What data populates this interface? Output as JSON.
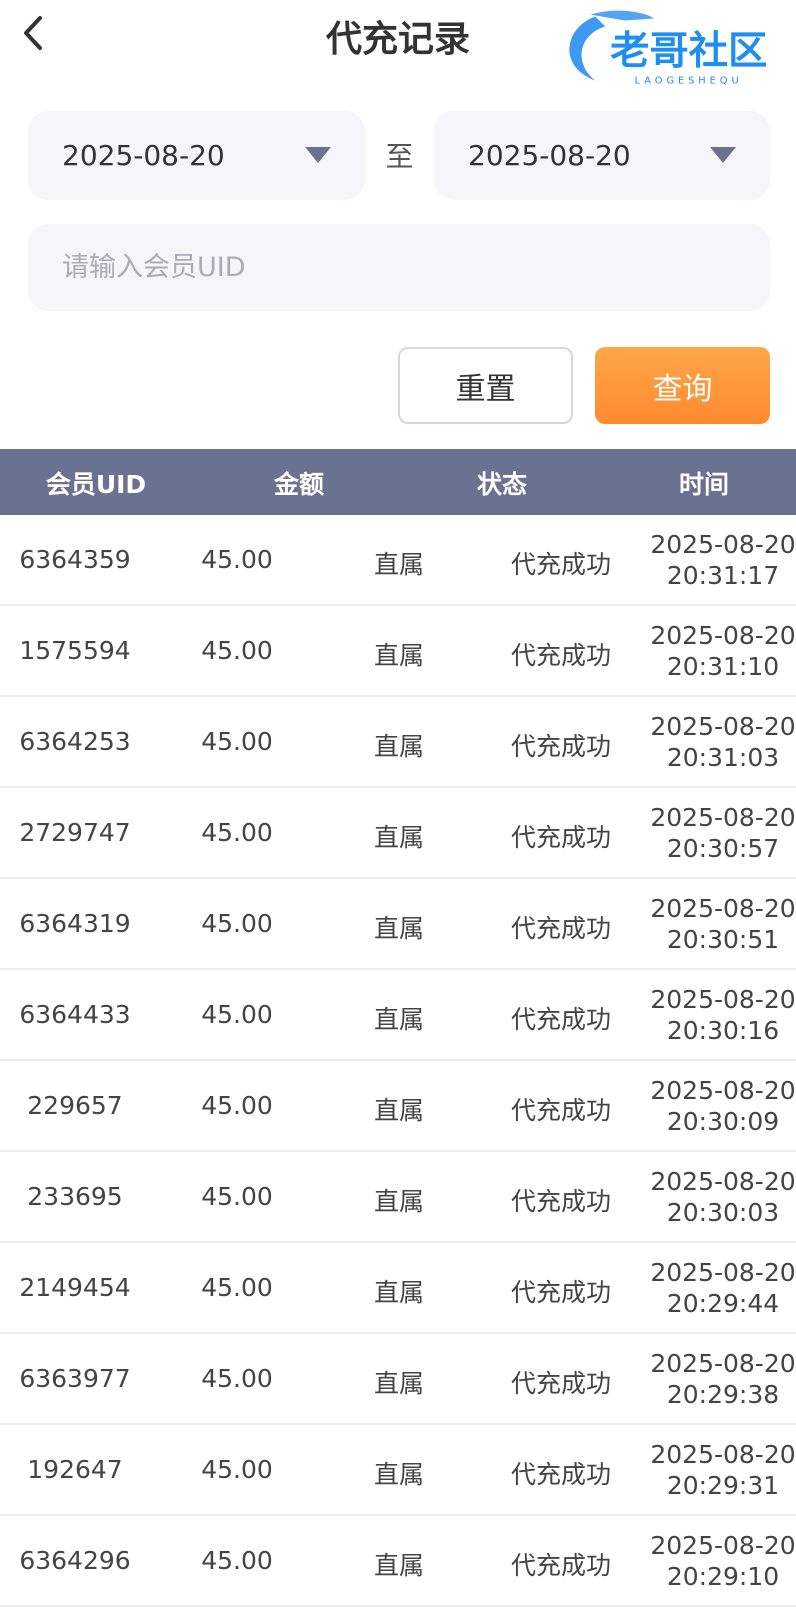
{
  "header": {
    "title": "代充记录"
  },
  "filters": {
    "start_date": "2025-08-20",
    "separator": "至",
    "end_date": "2025-08-20",
    "uid_placeholder": "请输入会员UID",
    "uid_value": "",
    "reset_label": "重置",
    "query_label": "查询"
  },
  "colors": {
    "header_bg": "#6b7290",
    "accent": "#ff9a3c"
  },
  "table": {
    "columns": [
      "会员UID",
      "金额",
      "状态",
      "时间"
    ],
    "rows": [
      {
        "uid": "6364359",
        "amount": "45.00",
        "type": "直属",
        "status": "代充成功",
        "date": "2025-08-20",
        "time": "20:31:17"
      },
      {
        "uid": "1575594",
        "amount": "45.00",
        "type": "直属",
        "status": "代充成功",
        "date": "2025-08-20",
        "time": "20:31:10"
      },
      {
        "uid": "6364253",
        "amount": "45.00",
        "type": "直属",
        "status": "代充成功",
        "date": "2025-08-20",
        "time": "20:31:03"
      },
      {
        "uid": "2729747",
        "amount": "45.00",
        "type": "直属",
        "status": "代充成功",
        "date": "2025-08-20",
        "time": "20:30:57"
      },
      {
        "uid": "6364319",
        "amount": "45.00",
        "type": "直属",
        "status": "代充成功",
        "date": "2025-08-20",
        "time": "20:30:51"
      },
      {
        "uid": "6364433",
        "amount": "45.00",
        "type": "直属",
        "status": "代充成功",
        "date": "2025-08-20",
        "time": "20:30:16"
      },
      {
        "uid": "229657",
        "amount": "45.00",
        "type": "直属",
        "status": "代充成功",
        "date": "2025-08-20",
        "time": "20:30:09"
      },
      {
        "uid": "233695",
        "amount": "45.00",
        "type": "直属",
        "status": "代充成功",
        "date": "2025-08-20",
        "time": "20:30:03"
      },
      {
        "uid": "2149454",
        "amount": "45.00",
        "type": "直属",
        "status": "代充成功",
        "date": "2025-08-20",
        "time": "20:29:44"
      },
      {
        "uid": "6363977",
        "amount": "45.00",
        "type": "直属",
        "status": "代充成功",
        "date": "2025-08-20",
        "time": "20:29:38"
      },
      {
        "uid": "192647",
        "amount": "45.00",
        "type": "直属",
        "status": "代充成功",
        "date": "2025-08-20",
        "time": "20:29:31"
      },
      {
        "uid": "6364296",
        "amount": "45.00",
        "type": "直属",
        "status": "代充成功",
        "date": "2025-08-20",
        "time": "20:29:10"
      }
    ]
  },
  "watermark": {
    "text": "老哥社区",
    "subtext": "LAOGESHEQU"
  }
}
